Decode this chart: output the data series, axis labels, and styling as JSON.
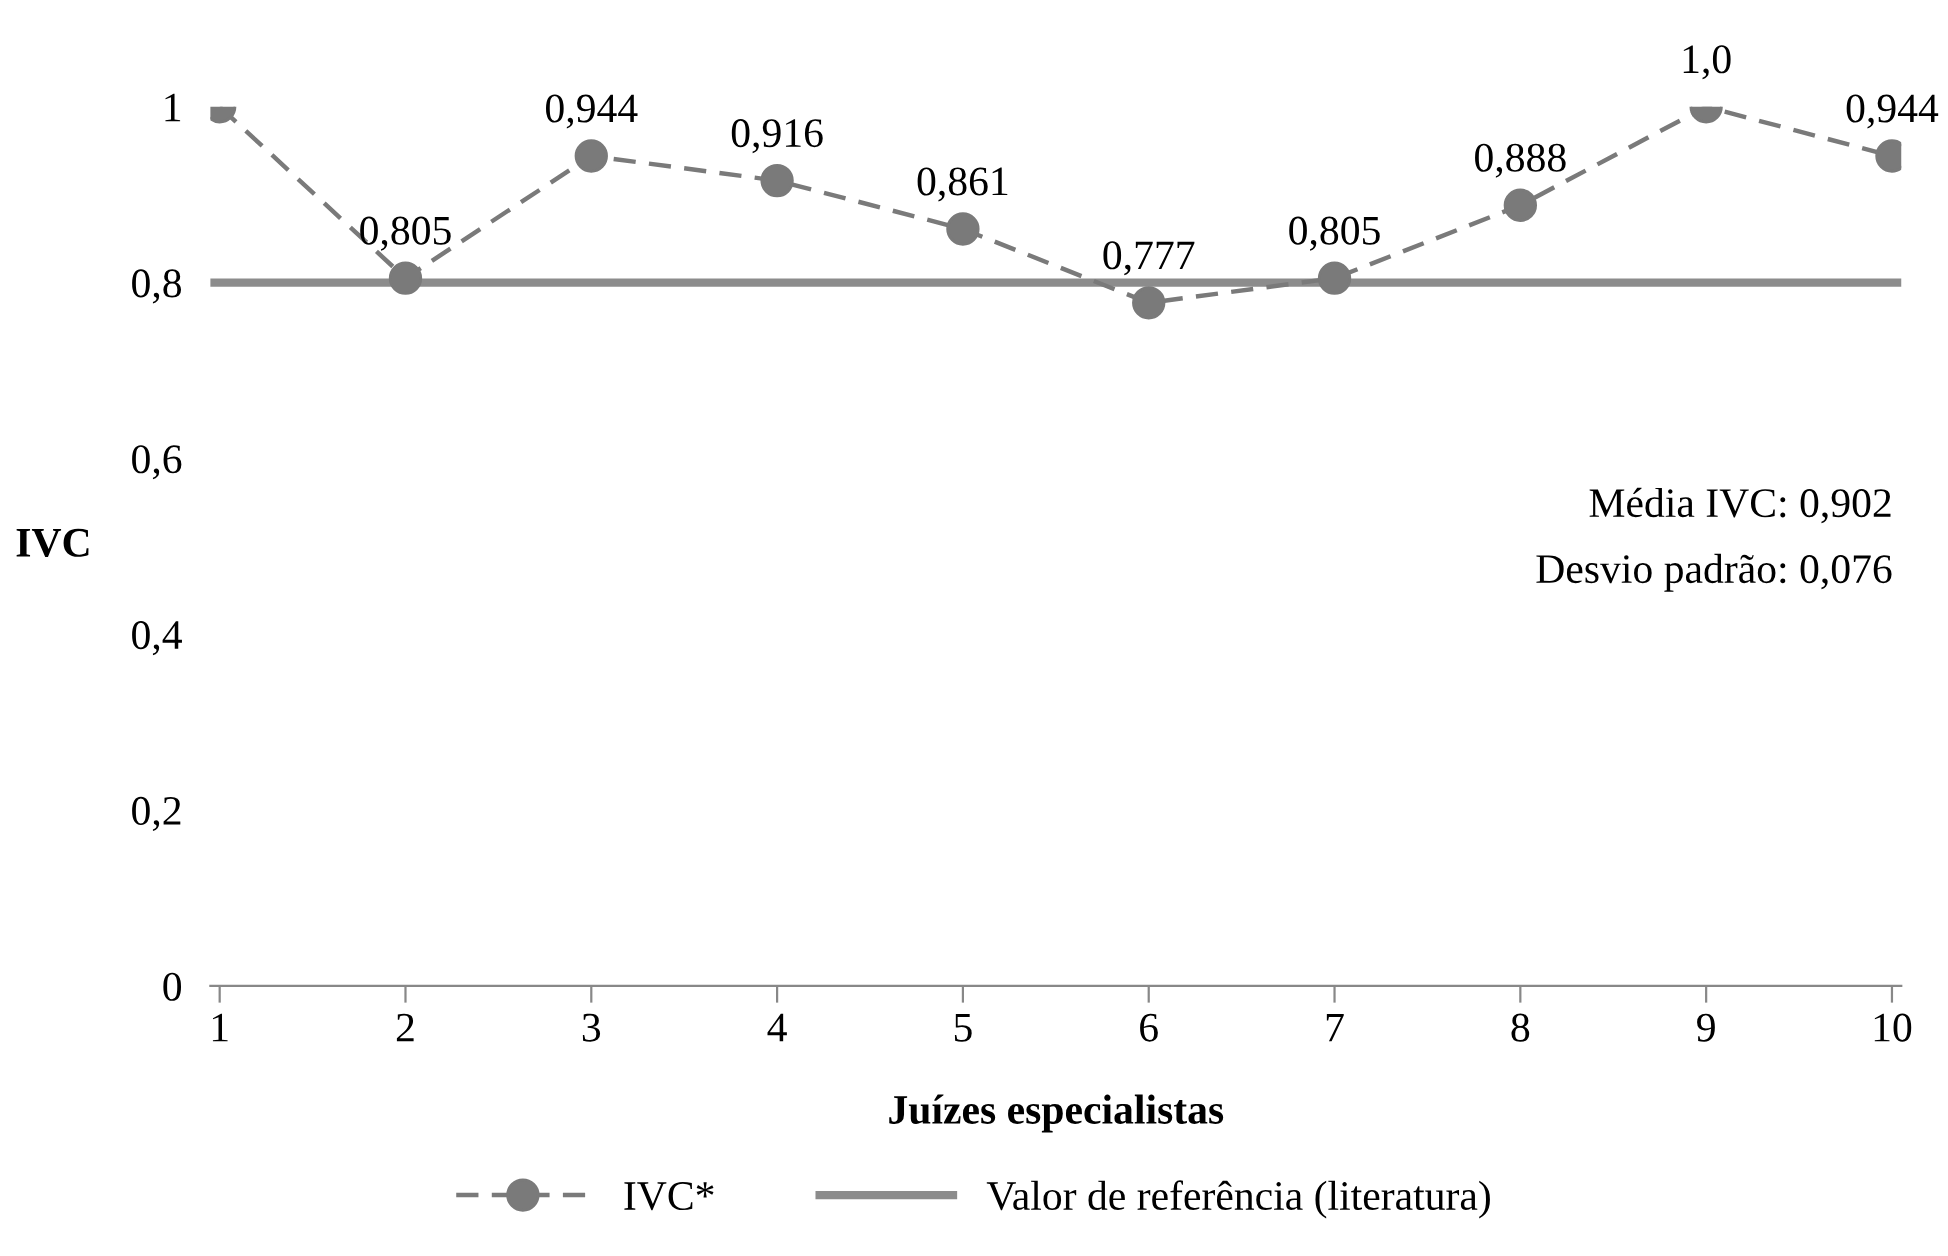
{
  "chart_data": {
    "type": "line",
    "xlabel": "Juízes especialistas",
    "ylabel": "IVC",
    "categories": [
      "1",
      "2",
      "3",
      "4",
      "5",
      "6",
      "7",
      "8",
      "9",
      "10"
    ],
    "series": [
      {
        "name": "IVC*",
        "color": "#7a7a7a",
        "values": [
          1,
          0.805,
          0.944,
          0.916,
          0.861,
          0.777,
          0.805,
          0.888,
          1.0,
          0.944
        ],
        "value_labels": [
          null,
          "0,805",
          "0,944",
          "0,916",
          "0,861",
          "0,777",
          "0,805",
          "0,888",
          "1,0",
          "0,944"
        ]
      }
    ],
    "ref_lines": [
      {
        "axis": "y",
        "value": 0.8,
        "label": "Valor de referência (literatura)",
        "color": "#8c8c8c",
        "line_style": "solid"
      }
    ],
    "ylim": [
      0,
      1
    ],
    "yticks": [
      0,
      {
        "value": 0.2,
        "label": "0,2"
      },
      {
        "value": 0.4,
        "label": "0,4"
      },
      {
        "value": 0.6,
        "label": "0,6"
      },
      {
        "value": 0.8,
        "label": "0,8"
      },
      1
    ],
    "annotations": [
      "Média IVC: 0,902",
      "Desvio padrão: 0,076"
    ],
    "marker": "circle",
    "line_style": "dashed",
    "grid": false,
    "legend": "bottom"
  }
}
